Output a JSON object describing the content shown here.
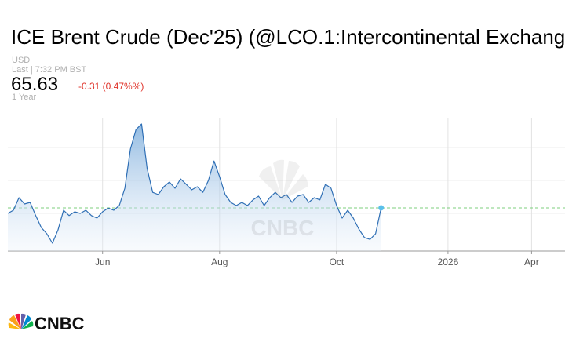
{
  "header": {
    "title": "ICE Brent Crude (Dec'25) (@LCO.1:Intercontinental Exchang",
    "currency": "USD",
    "last_time": "Last | 7:32 PM BST",
    "change": "-0.31 (0.47%%)",
    "range": "1 Year"
  },
  "last_price": 65.63,
  "watermark": "CNBC",
  "logo": "CNBC",
  "chart_data": {
    "type": "line",
    "categories": [
      null,
      null,
      null,
      null,
      null,
      null,
      null,
      null,
      null,
      null,
      null,
      null,
      null,
      null,
      null,
      null,
      null,
      "Jun",
      null,
      null,
      null,
      null,
      null,
      null,
      null,
      null,
      null,
      null,
      null,
      null,
      null,
      null,
      null,
      null,
      null,
      null,
      null,
      null,
      "Aug",
      null,
      null,
      null,
      null,
      null,
      null,
      null,
      null,
      null,
      null,
      null,
      null,
      null,
      null,
      null,
      null,
      null,
      null,
      null,
      null,
      "Oct",
      null,
      null,
      null,
      null,
      null,
      null,
      null,
      null,
      null,
      null,
      null,
      null,
      null,
      null,
      null,
      null,
      null,
      null,
      null,
      "2026",
      null,
      null,
      null,
      null,
      null,
      null,
      null,
      null,
      null,
      null,
      null,
      null,
      null,
      null,
      "Apr",
      null,
      null,
      null,
      null,
      null
    ],
    "series": [
      {
        "color": "#2f6fb5",
        "values": [
          64.75,
          65.25,
          67.25,
          66.25,
          66.5,
          64.4,
          62.5,
          61.5,
          60.0,
          62.1,
          65.25,
          64.4,
          65.0,
          64.75,
          65.25,
          64.4,
          64.0,
          65.0,
          65.6,
          65.25,
          66.0,
          68.75,
          75.0,
          78.1,
          79.0,
          71.9,
          68.1,
          67.75,
          69.0,
          69.75,
          68.75,
          70.25,
          69.4,
          68.5,
          69.0,
          68.1,
          70.0,
          73.1,
          70.6,
          67.75,
          66.5,
          66.0,
          66.5,
          66.0,
          66.9,
          67.5,
          66.0,
          67.25,
          68.1,
          67.25,
          67.75,
          66.5,
          67.5,
          67.75,
          66.5,
          67.25,
          66.9,
          69.4,
          68.75,
          66.0,
          64.0,
          65.25,
          64.0,
          62.25,
          60.9,
          60.6,
          61.5,
          65.63,
          null,
          null,
          null,
          null,
          null,
          null,
          null,
          null,
          null,
          null,
          null,
          null,
          null,
          null,
          null,
          null,
          null,
          null,
          null,
          null,
          null,
          null,
          null,
          null,
          null,
          null,
          null,
          null,
          null,
          null,
          null,
          null
        ]
      }
    ],
    "ylim": [
      58.75,
      80
    ],
    "yticks": [
      64.75,
      70,
      75.25
    ],
    "grid": true
  }
}
